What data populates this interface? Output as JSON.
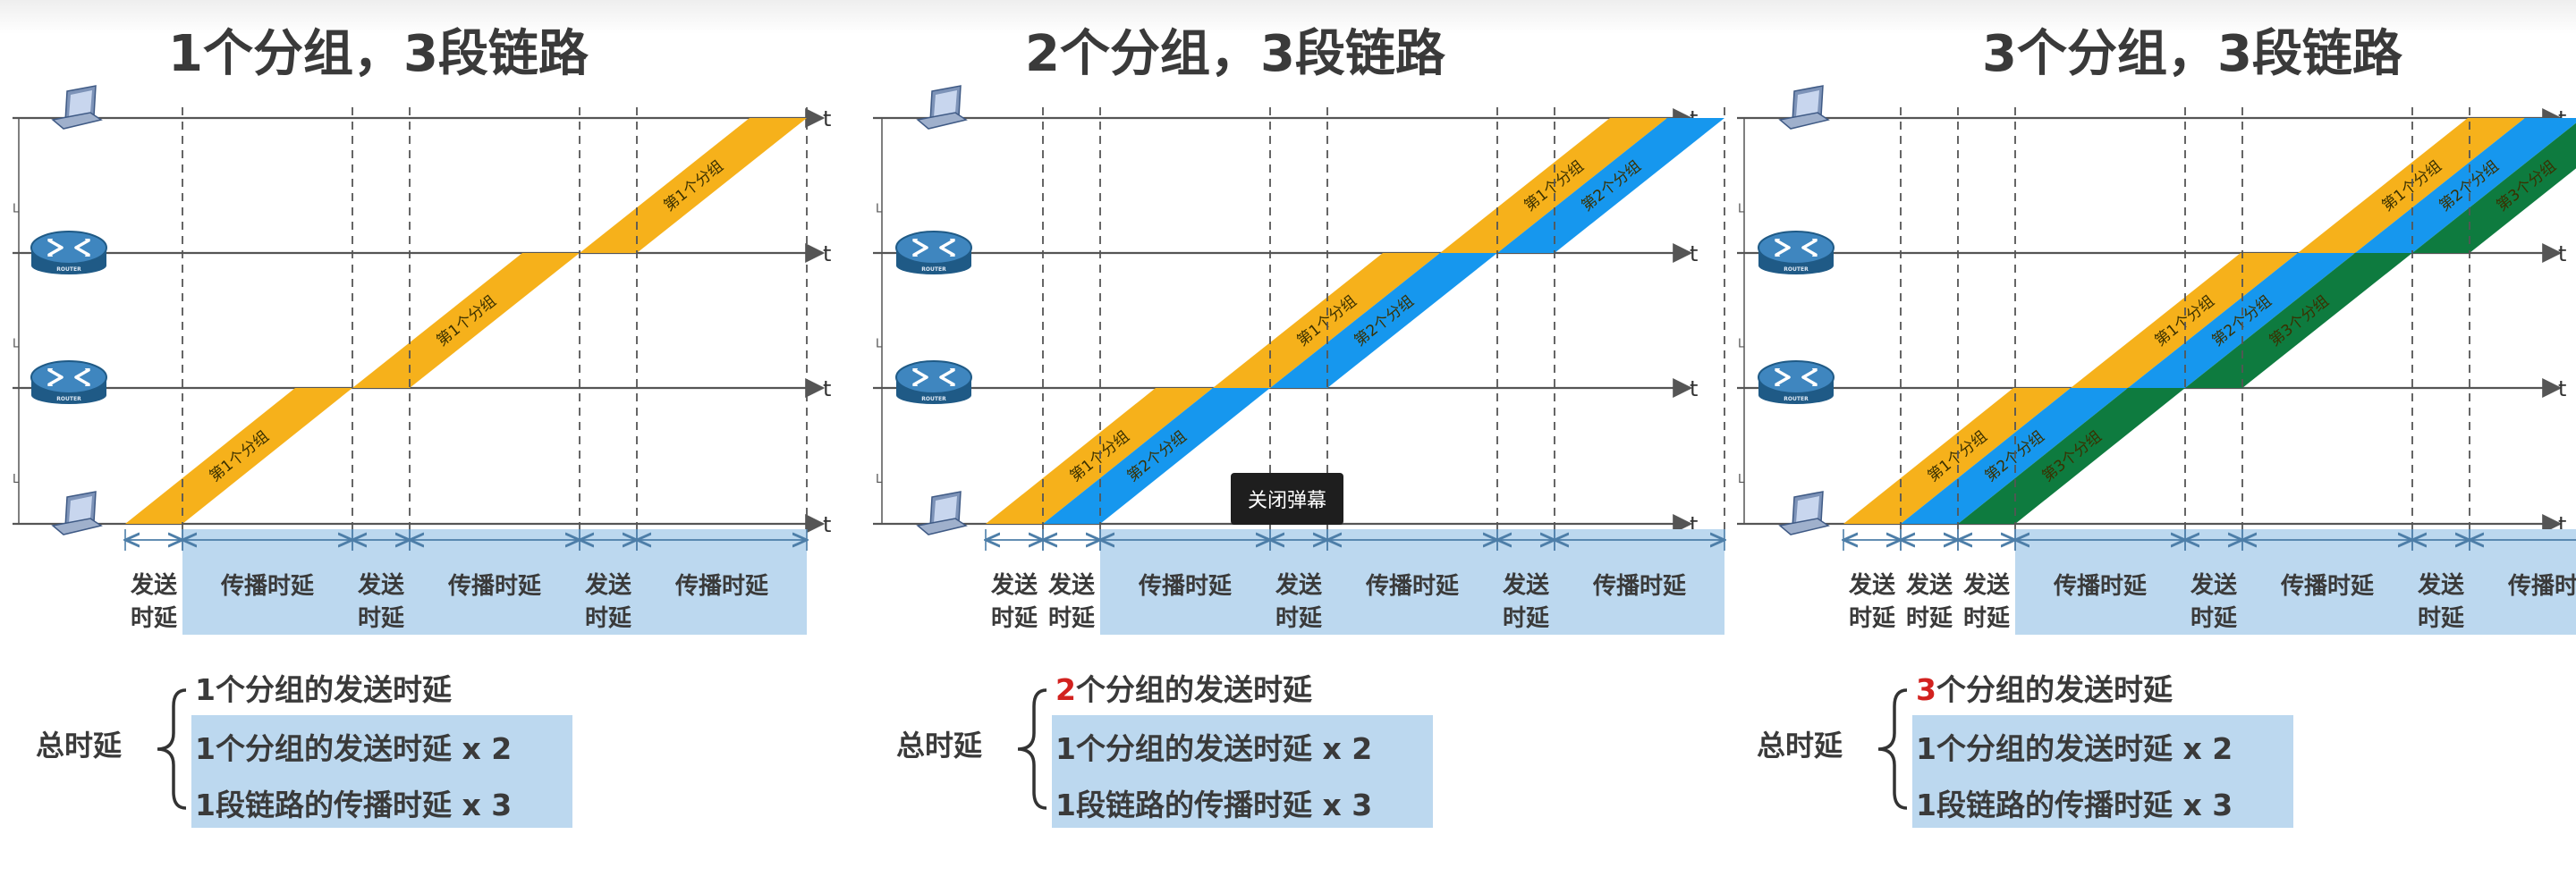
{
  "tooltip": {
    "close_danmaku": "关闭弹幕"
  },
  "colors": {
    "orange": "#f6b11b",
    "blue": "#1697ee",
    "green": "#0e7b3f",
    "bar": "#bcd8ef",
    "axis": "#555555",
    "red": "#d2221f"
  },
  "icons": [
    "laptop-icon",
    "router-icon",
    "router-icon",
    "laptop-icon"
  ],
  "panels": [
    {
      "title": "1个分组，3段链路",
      "t_label": "t",
      "L_label": "L",
      "packet_labels": [
        "第1个分组"
      ],
      "legend_labels": [
        "发送时延",
        "传播时延",
        "发送时延",
        "传播时延",
        "发送时延",
        "传播时延"
      ],
      "summary": {
        "total_label": "总时延",
        "line1_num": "1",
        "line1_rest": "个分组的发送时延",
        "line2": "1个分组的发送时延 x 2",
        "line3": "1段链路的传播时延 x 3"
      }
    },
    {
      "title": "2个分组，3段链路",
      "t_label": "t",
      "L_label": "L",
      "packet_labels": [
        "第1个分组",
        "第2个分组"
      ],
      "legend_labels": [
        "发送时延",
        "发送时延",
        "传播时延",
        "发送时延",
        "传播时延",
        "发送时延",
        "传播时延"
      ],
      "summary": {
        "total_label": "总时延",
        "line1_num": "2",
        "line1_rest": "个分组的发送时延",
        "line2": "1个分组的发送时延 x 2",
        "line3": "1段链路的传播时延 x 3"
      }
    },
    {
      "title": "3个分组，3段链路",
      "t_label": "t",
      "L_label": "L",
      "packet_labels": [
        "第1个分组",
        "第2个分组",
        "第3个分组"
      ],
      "legend_labels": [
        "发送时延",
        "发送时延",
        "发送时延",
        "传播时延",
        "发送时延",
        "传播时延",
        "发送时延",
        "传播时延"
      ],
      "summary": {
        "total_label": "总时延",
        "line1_num": "3",
        "line1_rest": "个分组的发送时延",
        "line2": "1个分组的发送时延 x 2",
        "line3": "1段链路的传播时延 x 3"
      }
    }
  ]
}
